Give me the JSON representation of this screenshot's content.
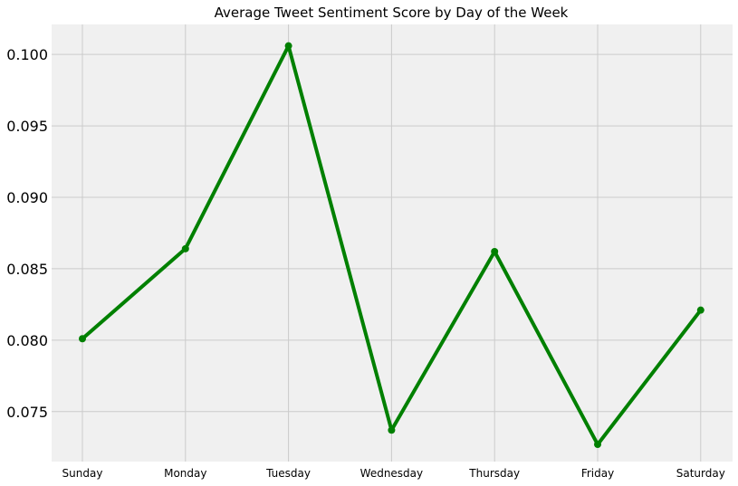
{
  "chart_data": {
    "type": "line",
    "title": "Average Tweet Sentiment Score by Day of the Week",
    "xlabel": "",
    "ylabel": "",
    "categories": [
      "Sunday",
      "Monday",
      "Tuesday",
      "Wednesday",
      "Thursday",
      "Friday",
      "Saturday"
    ],
    "series": [
      {
        "values": [
          0.0801,
          0.0864,
          0.1006,
          0.0737,
          0.0862,
          0.0727,
          0.0821
        ],
        "color": "#008000"
      }
    ],
    "ylim": [
      0.0715,
      0.1021
    ],
    "yticks": [
      0.075,
      0.08,
      0.085,
      0.09,
      0.095,
      0.1
    ],
    "ytick_labels": [
      "0.075",
      "0.080",
      "0.085",
      "0.090",
      "0.095",
      "0.100"
    ],
    "grid": true,
    "colors": {
      "line": "#008000",
      "plot_background": "#f0f0f0",
      "grid": "#cbcbcb"
    }
  }
}
